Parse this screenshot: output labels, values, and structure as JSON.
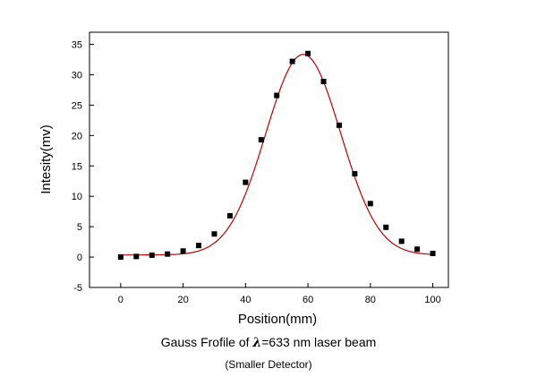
{
  "chart_data": {
    "type": "scatter",
    "xlabel": "Position(mm)",
    "ylabel": "Intesity(mv)",
    "xlim": [
      -10,
      105
    ],
    "ylim": [
      -5,
      37
    ],
    "x_ticks": [
      0,
      20,
      40,
      60,
      80,
      100
    ],
    "y_ticks": [
      -5,
      0,
      5,
      10,
      15,
      20,
      25,
      30,
      35
    ],
    "grid": false,
    "legend": "none",
    "series": [
      {
        "kind": "markers",
        "color": "#000000",
        "x": [
          0,
          5,
          10,
          15,
          20,
          25,
          30,
          35,
          40,
          45,
          50,
          55,
          60,
          65,
          70,
          75,
          80,
          85,
          90,
          95,
          100
        ],
        "y": [
          0.0,
          0.1,
          0.3,
          0.5,
          1.0,
          1.9,
          3.8,
          6.8,
          12.3,
          19.3,
          26.6,
          32.2,
          33.5,
          28.9,
          21.7,
          13.7,
          8.8,
          4.9,
          2.6,
          1.3,
          0.6
        ]
      },
      {
        "kind": "fit-line",
        "color": "#c00000",
        "model": "gaussian",
        "baseline": 0.35,
        "amplitude": 33.0,
        "center": 58.5,
        "sigma": 12.0,
        "x_range": [
          0,
          100
        ]
      }
    ],
    "caption": {
      "line1_prefix": "Gauss Frofile of ",
      "line1_symbol": "λ",
      "line1_suffix": "=633 nm laser beam",
      "line2": "(Smaller Detector)"
    }
  }
}
